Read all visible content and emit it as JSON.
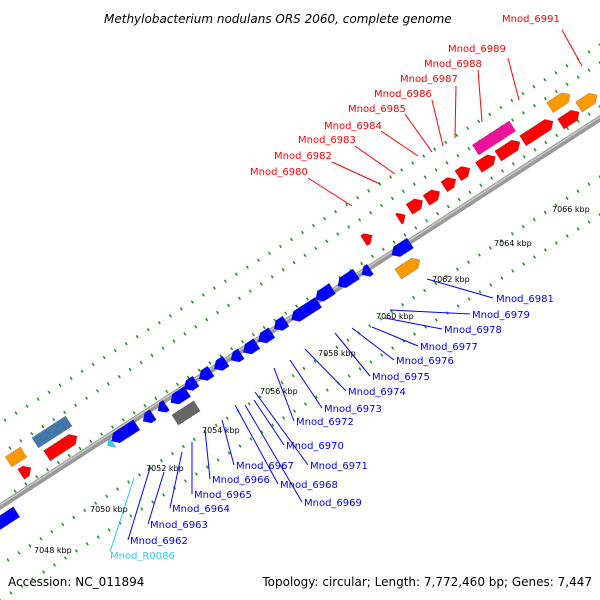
{
  "title": "Methylobacterium nodulans ORS 2060, complete genome",
  "footer": {
    "accession": "Accession: NC_011894",
    "summary": "Topology: circular; Length: 7,772,460 bp; Genes: 7,447"
  },
  "colors": {
    "forward": "#ff0000",
    "reverse": "#0000ff",
    "rna": "#33ccee",
    "orange": "#ff9900",
    "magenta": "#ee1199",
    "grey": "#666666",
    "backbone": "#999999",
    "dots": "#229922"
  },
  "ticks": [
    "7048 kbp",
    "7050 kbp",
    "7052 kbp",
    "7054 kbp",
    "7056 kbp",
    "7058 kbp",
    "7060 kbp",
    "7062 kbp",
    "7064 kbp",
    "7066 kbp"
  ],
  "upper_labels": [
    "Mnod_6991",
    "Mnod_6989",
    "Mnod_6988",
    "Mnod_6987",
    "Mnod_6986",
    "Mnod_6985",
    "Mnod_6984",
    "Mnod_6983",
    "Mnod_6982",
    "Mnod_6980"
  ],
  "lower_labels": [
    "Mnod_6981",
    "Mnod_6979",
    "Mnod_6978",
    "Mnod_6977",
    "Mnod_6976",
    "Mnod_6975",
    "Mnod_6974",
    "Mnod_6973",
    "Mnod_6972",
    "Mnod_6971",
    "Mnod_6970",
    "Mnod_6969",
    "Mnod_6968",
    "Mnod_6967",
    "Mnod_6966",
    "Mnod_6965",
    "Mnod_6964",
    "Mnod_6963",
    "Mnod_6962",
    "Mnod_R0086"
  ]
}
